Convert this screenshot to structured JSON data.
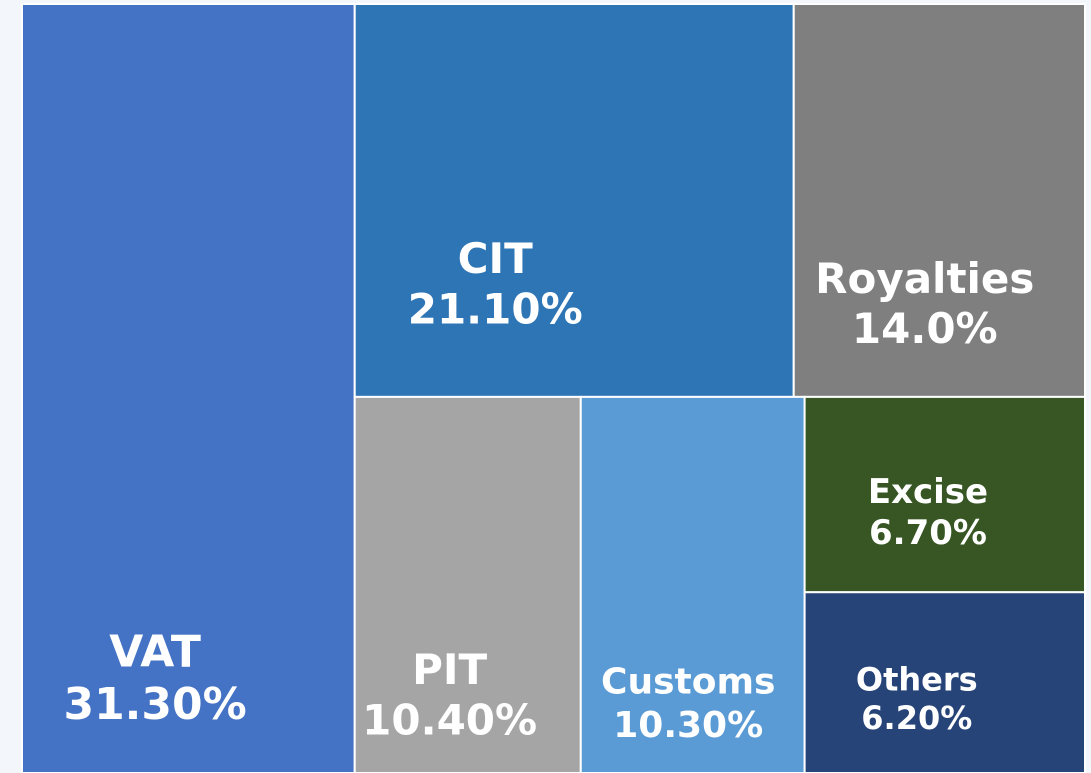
{
  "chart_data": {
    "type": "treemap",
    "categories": [
      "VAT",
      "CIT",
      "Royalties",
      "PIT",
      "Customs",
      "Excise",
      "Others"
    ],
    "values": [
      31.3,
      21.1,
      14.0,
      10.4,
      10.3,
      6.7,
      6.2
    ],
    "value_labels": [
      "31.30%",
      "21.10%",
      "14.0%",
      "10.40%",
      "10.30%",
      "6.70%",
      "6.20%"
    ],
    "colors": [
      "#4472c4",
      "#2e75b6",
      "#7f7f7f",
      "#a5a5a5",
      "#5b9bd5",
      "#375623",
      "#264478"
    ]
  }
}
